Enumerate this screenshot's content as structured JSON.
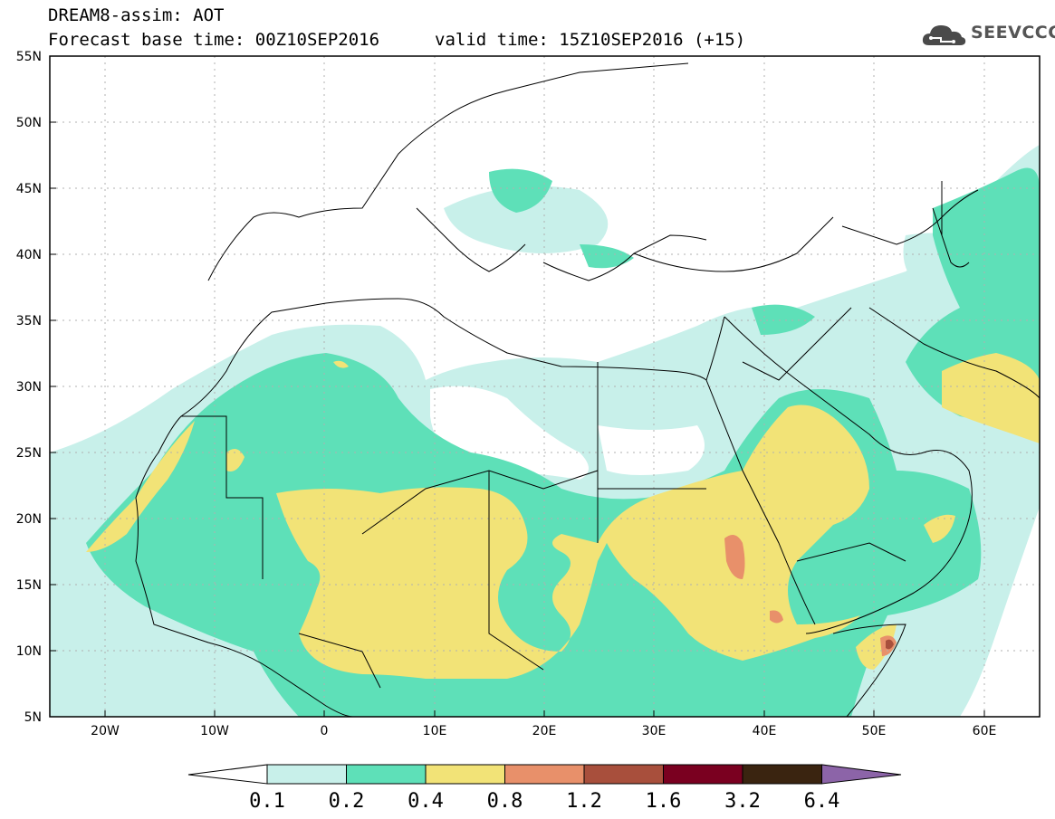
{
  "header": {
    "title": "DREAM8-assim: AOT",
    "base_time": "Forecast base time: 00Z10SEP2016",
    "valid_time": "valid time: 15Z10SEP2016 (+15)"
  },
  "logo": {
    "text": "SEEVCCC",
    "icon": "cloud-icon"
  },
  "axes": {
    "lat_labels": [
      "55N",
      "50N",
      "45N",
      "40N",
      "35N",
      "30N",
      "25N",
      "20N",
      "15N",
      "10N",
      "5N"
    ],
    "lon_labels": [
      "20W",
      "10W",
      "0",
      "10E",
      "20E",
      "30E",
      "40E",
      "50E",
      "60E"
    ]
  },
  "colorbar": {
    "levels": [
      "0.1",
      "0.2",
      "0.4",
      "0.8",
      "1.2",
      "1.6",
      "3.2",
      "6.4"
    ],
    "colors": [
      "#ffffff",
      "#c8f0ea",
      "#5ee0b8",
      "#f2e377",
      "#e8906a",
      "#a84f3c",
      "#7a0020",
      "#3a2410",
      "#8c64a8"
    ]
  },
  "chart_data": {
    "type": "heatmap",
    "variable": "AOT",
    "lon_range": [
      -25,
      65
    ],
    "lat_range": [
      5,
      55
    ],
    "grid": true
  }
}
